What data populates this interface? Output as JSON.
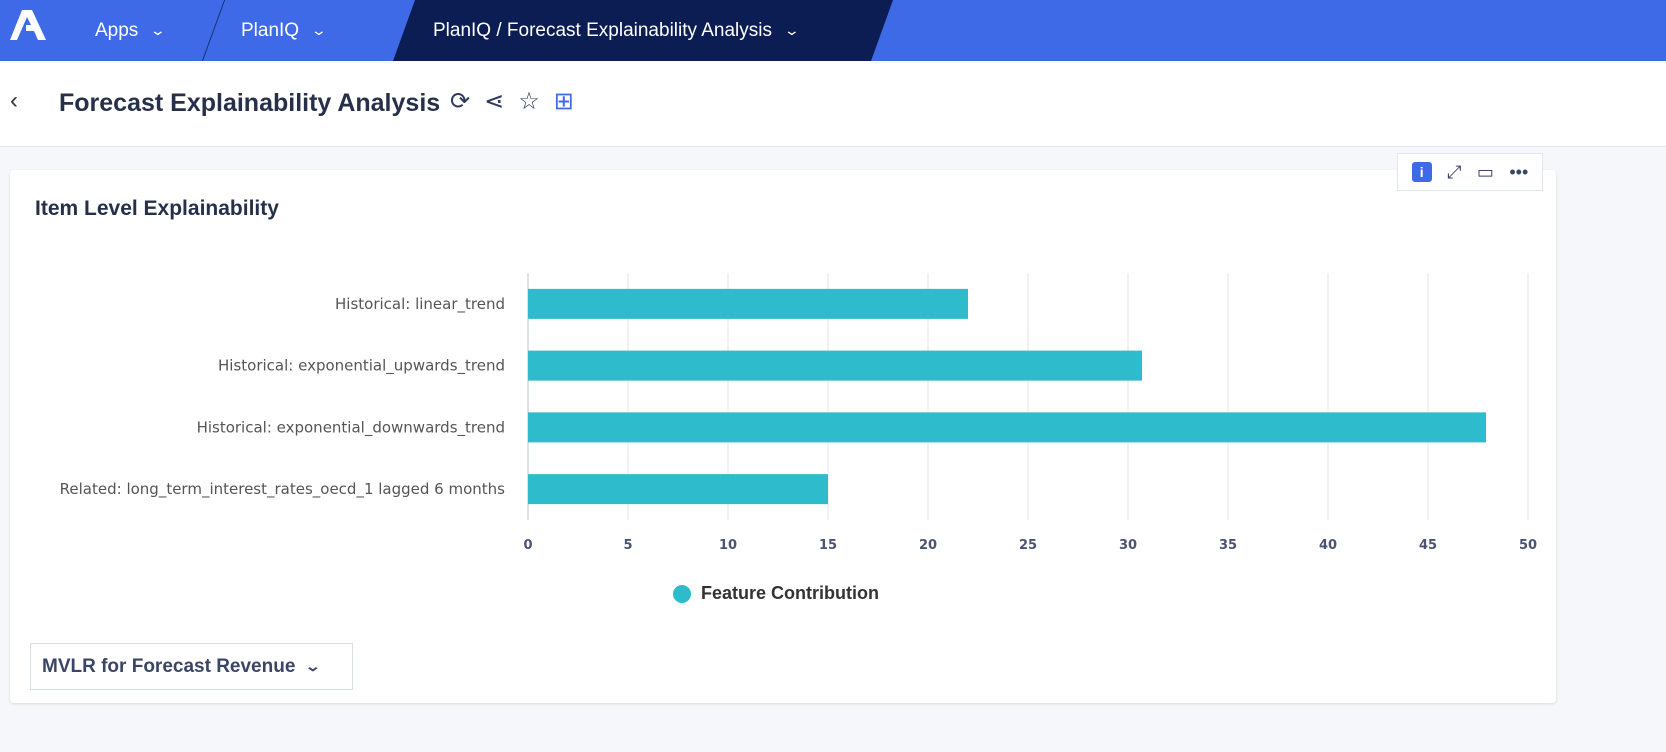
{
  "topbar": {
    "apps": "Apps",
    "app": "PlanIQ",
    "page": "PlanIQ / Forecast Explainability Analysis"
  },
  "header": {
    "title": "Forecast Explainability Analysis"
  },
  "card": {
    "title": "Item Level Explainability",
    "selector": "MVLR for Forecast Revenue"
  },
  "chart_data": {
    "type": "bar",
    "orientation": "horizontal",
    "categories": [
      "Historical: linear_trend",
      "Historical: exponential_upwards_trend",
      "Historical: exponential_downwards_trend",
      "Related: long_term_interest_rates_oecd_1 lagged 6 months"
    ],
    "series": [
      {
        "name": "Feature Contribution",
        "values": [
          22.0,
          30.7,
          47.9,
          15.0
        ],
        "color": "#2ebbcb"
      }
    ],
    "xlim": [
      0,
      50
    ],
    "xticks": [
      0,
      5,
      10,
      15,
      20,
      25,
      30,
      35,
      40,
      45,
      50
    ],
    "grid": true,
    "legend": "bottom"
  }
}
